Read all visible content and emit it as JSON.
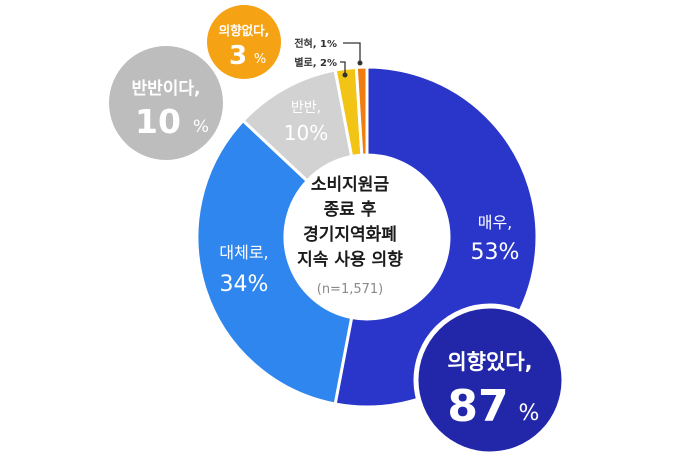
{
  "chart_data": {
    "type": "pie",
    "title_lines": [
      "소비지원금",
      "종료 후",
      "경기지역화폐",
      "지속 사용 의향"
    ],
    "n_label": "(n=1,571)",
    "slices": [
      {
        "label": "매우,",
        "value": 53,
        "color": "#2a35c9",
        "text": "53%"
      },
      {
        "label": "대체로,",
        "value": 34,
        "color": "#2f86ee",
        "text": "34%"
      },
      {
        "label": "반반,",
        "value": 10,
        "color": "#d2d2d2",
        "text": "10%"
      },
      {
        "label": "별로, 2%",
        "value": 2,
        "color": "#f2c416",
        "text": ""
      },
      {
        "label": "전혀, 1%",
        "value": 1,
        "color": "#f07d0f",
        "text": ""
      }
    ],
    "groups": [
      {
        "label": "의향있다,",
        "value": 87,
        "text": "87",
        "unit": "%",
        "color": "#2226a8"
      },
      {
        "label": "반반이다,",
        "value": 10,
        "text": "10",
        "unit": "%",
        "color": "#bdbdbd"
      },
      {
        "label": "의향없다,",
        "value": 3,
        "text": "3",
        "unit": "%",
        "color": "#f5a214"
      }
    ]
  }
}
